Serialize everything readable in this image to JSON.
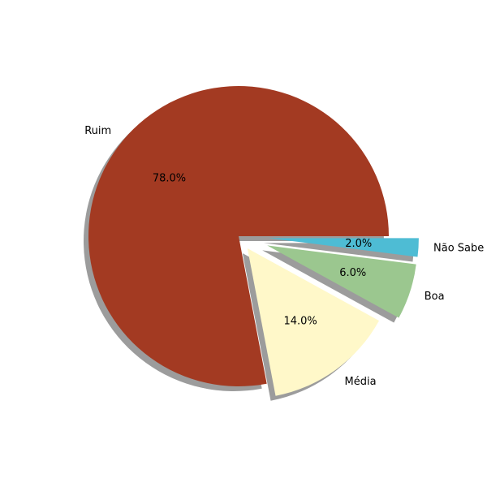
{
  "chart_data": {
    "type": "pie",
    "title": "",
    "start_angle_deg": 0,
    "direction": "counterclockwise",
    "shadow": true,
    "slices": [
      {
        "label": "Ruim",
        "value": 78.0,
        "pct_label": "78.0%",
        "color": "#a33a22",
        "explode": 0.0
      },
      {
        "label": "Média",
        "value": 14.0,
        "pct_label": "14.0%",
        "color": "#fff8c9",
        "explode": 0.1
      },
      {
        "label": "Boa",
        "value": 6.0,
        "pct_label": "6.0%",
        "color": "#9bc78f",
        "explode": 0.2
      },
      {
        "label": "Não Sabe",
        "value": 2.0,
        "pct_label": "2.0%",
        "color": "#4ebcd4",
        "explode": 0.2
      }
    ]
  }
}
